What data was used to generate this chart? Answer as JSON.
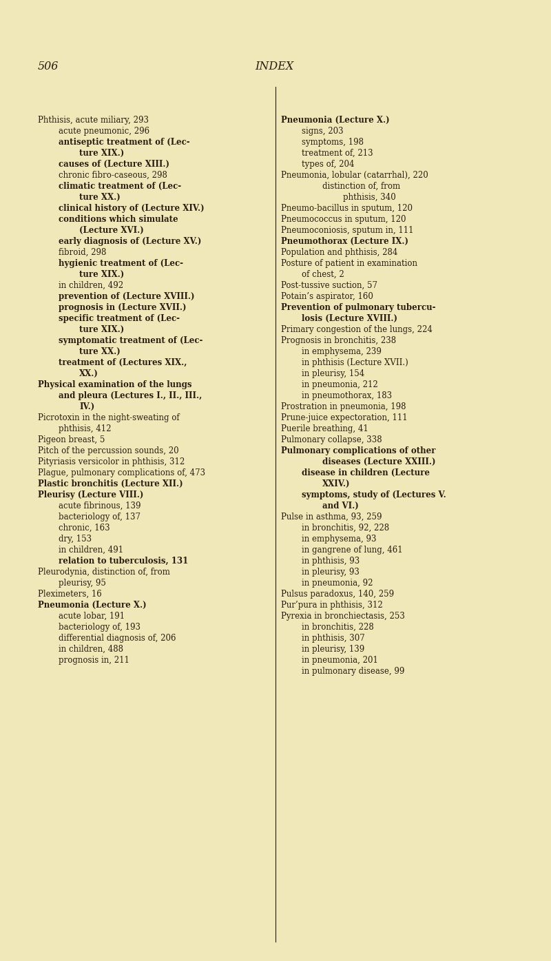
{
  "bg_color": "#f0e8b8",
  "page_number": "506",
  "page_title": "INDEX",
  "text_color": "#2a1f0e",
  "font_size": 8.5,
  "title_font_size": 11.5,
  "left_column": [
    {
      "text": "Phthisis, acute miliary, 293",
      "indent": 0,
      "bold": false
    },
    {
      "text": "acute pneumonic, 296",
      "indent": 1,
      "bold": false
    },
    {
      "text": "antiseptic treatment of (Lec-",
      "indent": 1,
      "bold": true
    },
    {
      "text": "ture XIX.)",
      "indent": 2,
      "bold": true
    },
    {
      "text": "causes of (Lecture XIII.)",
      "indent": 1,
      "bold": true
    },
    {
      "text": "chronic fibro-caseous, 298",
      "indent": 1,
      "bold": false
    },
    {
      "text": "climatic treatment of (Lec-",
      "indent": 1,
      "bold": true
    },
    {
      "text": "ture XX.)",
      "indent": 2,
      "bold": true
    },
    {
      "text": "clinical history of (Lecture XIV.)",
      "indent": 1,
      "bold": true
    },
    {
      "text": "conditions which simulate",
      "indent": 1,
      "bold": true
    },
    {
      "text": "(Lecture XVI.)",
      "indent": 2,
      "bold": true
    },
    {
      "text": "early diagnosis of (Lecture XV.)",
      "indent": 1,
      "bold": true
    },
    {
      "text": "fibroid, 298",
      "indent": 1,
      "bold": false
    },
    {
      "text": "hygienic treatment of (Lec-",
      "indent": 1,
      "bold": true
    },
    {
      "text": "ture XIX.)",
      "indent": 2,
      "bold": true
    },
    {
      "text": "in children, 492",
      "indent": 1,
      "bold": false
    },
    {
      "text": "prevention of (Lecture XVIII.)",
      "indent": 1,
      "bold": true
    },
    {
      "text": "prognosis in (Lecture XVII.)",
      "indent": 1,
      "bold": true
    },
    {
      "text": "specific treatment of (Lec-",
      "indent": 1,
      "bold": true
    },
    {
      "text": "ture XIX.)",
      "indent": 2,
      "bold": true
    },
    {
      "text": "symptomatic treatment of (Lec-",
      "indent": 1,
      "bold": true
    },
    {
      "text": "ture XX.)",
      "indent": 2,
      "bold": true
    },
    {
      "text": "treatment of (Lectures XIX.,",
      "indent": 1,
      "bold": true
    },
    {
      "text": "XX.)",
      "indent": 2,
      "bold": true
    },
    {
      "text": "Physical examination of the lungs",
      "indent": 0,
      "bold": true
    },
    {
      "text": "and pleura (Lectures I., II., III.,",
      "indent": 1,
      "bold": true
    },
    {
      "text": "IV.)",
      "indent": 2,
      "bold": true
    },
    {
      "text": "Picrotoxin in the night-sweating of",
      "indent": 0,
      "bold": false
    },
    {
      "text": "phthisis, 412",
      "indent": 1,
      "bold": false
    },
    {
      "text": "Pigeon breast, 5",
      "indent": 0,
      "bold": false
    },
    {
      "text": "Pitch of the percussion sounds, 20",
      "indent": 0,
      "bold": false
    },
    {
      "text": "Pityriasis versicolor in phthisis, 312",
      "indent": 0,
      "bold": false
    },
    {
      "text": "Plague, pulmonary complications of, 473",
      "indent": 0,
      "bold": false
    },
    {
      "text": "Plastic bronchitis (Lecture XII.)",
      "indent": 0,
      "bold": true
    },
    {
      "text": "Pleurisy (Lecture VIII.)",
      "indent": 0,
      "bold": true
    },
    {
      "text": "acute fibrinous, 139",
      "indent": 1,
      "bold": false
    },
    {
      "text": "bacteriology of, 137",
      "indent": 1,
      "bold": false
    },
    {
      "text": "chronic, 163",
      "indent": 1,
      "bold": false
    },
    {
      "text": "dry, 153",
      "indent": 1,
      "bold": false
    },
    {
      "text": "in children, 491",
      "indent": 1,
      "bold": false
    },
    {
      "text": "relation to tuberculosis, 131",
      "indent": 1,
      "bold": true
    },
    {
      "text": "Pleurodynia, distinction of, from",
      "indent": 0,
      "bold": false
    },
    {
      "text": "pleurisy, 95",
      "indent": 1,
      "bold": false
    },
    {
      "text": "Pleximeters, 16",
      "indent": 0,
      "bold": false
    },
    {
      "text": "Pneumonia (Lecture X.)",
      "indent": 0,
      "bold": true
    },
    {
      "text": "acute lobar, 191",
      "indent": 1,
      "bold": false
    },
    {
      "text": "bacteriology of, 193",
      "indent": 1,
      "bold": false
    },
    {
      "text": "differential diagnosis of, 206",
      "indent": 1,
      "bold": false
    },
    {
      "text": "in children, 488",
      "indent": 1,
      "bold": false
    },
    {
      "text": "prognosis in, 211",
      "indent": 1,
      "bold": false
    }
  ],
  "right_column": [
    {
      "text": "Pneumonia (Lecture X.)",
      "indent": 0,
      "bold": true
    },
    {
      "text": "signs, 203",
      "indent": 1,
      "bold": false
    },
    {
      "text": "symptoms, 198",
      "indent": 1,
      "bold": false
    },
    {
      "text": "treatment of, 213",
      "indent": 1,
      "bold": false
    },
    {
      "text": "types of, 204",
      "indent": 1,
      "bold": false
    },
    {
      "text": "Pneumonia, lobular (catarrhal), 220",
      "indent": 0,
      "bold": false
    },
    {
      "text": "distinction of, from",
      "indent": 2,
      "bold": false
    },
    {
      "text": "phthisis, 340",
      "indent": 3,
      "bold": false
    },
    {
      "text": "Pneumo-bacillus in sputum, 120",
      "indent": 0,
      "bold": false
    },
    {
      "text": "Pneumococcus in sputum, 120",
      "indent": 0,
      "bold": false
    },
    {
      "text": "Pneumoconiosis, sputum in, 111",
      "indent": 0,
      "bold": false
    },
    {
      "text": "Pneumothorax (Lecture IX.)",
      "indent": 0,
      "bold": true
    },
    {
      "text": "Population and phthisis, 284",
      "indent": 0,
      "bold": false
    },
    {
      "text": "Posture of patient in examination",
      "indent": 0,
      "bold": false
    },
    {
      "text": "of chest, 2",
      "indent": 1,
      "bold": false
    },
    {
      "text": "Post-tussive suction, 57",
      "indent": 0,
      "bold": false
    },
    {
      "text": "Potain’s aspirator, 160",
      "indent": 0,
      "bold": false
    },
    {
      "text": "Prevention of pulmonary tubercu-",
      "indent": 0,
      "bold": true
    },
    {
      "text": "losis (Lecture XVIII.)",
      "indent": 1,
      "bold": true
    },
    {
      "text": "Primary congestion of the lungs, 224",
      "indent": 0,
      "bold": false
    },
    {
      "text": "Prognosis in bronchitis, 238",
      "indent": 0,
      "bold": false
    },
    {
      "text": "in emphysema, 239",
      "indent": 1,
      "bold": false
    },
    {
      "text": "in phthisis (Lecture XVII.)",
      "indent": 1,
      "bold": false
    },
    {
      "text": "in pleurisy, 154",
      "indent": 1,
      "bold": false
    },
    {
      "text": "in pneumonia, 212",
      "indent": 1,
      "bold": false
    },
    {
      "text": "in pneumothorax, 183",
      "indent": 1,
      "bold": false
    },
    {
      "text": "Prostration in pneumonia, 198",
      "indent": 0,
      "bold": false
    },
    {
      "text": "Prune-juice expectoration, 111",
      "indent": 0,
      "bold": false
    },
    {
      "text": "Puerile breathing, 41",
      "indent": 0,
      "bold": false
    },
    {
      "text": "Pulmonary collapse, 338",
      "indent": 0,
      "bold": false
    },
    {
      "text": "Pulmonary complications of other",
      "indent": 0,
      "bold": true
    },
    {
      "text": "diseases (Lecture XXIII.)",
      "indent": 2,
      "bold": true
    },
    {
      "text": "disease in children (Lecture",
      "indent": 1,
      "bold": true
    },
    {
      "text": "XXIV.)",
      "indent": 2,
      "bold": true
    },
    {
      "text": "symptoms, study of (Lectures V.",
      "indent": 1,
      "bold": true
    },
    {
      "text": "and VI.)",
      "indent": 2,
      "bold": true
    },
    {
      "text": "Pulse in asthma, 93, 259",
      "indent": 0,
      "bold": false
    },
    {
      "text": "in bronchitis, 92, 228",
      "indent": 1,
      "bold": false
    },
    {
      "text": "in emphysema, 93",
      "indent": 1,
      "bold": false
    },
    {
      "text": "in gangrene of lung, 461",
      "indent": 1,
      "bold": false
    },
    {
      "text": "in phthisis, 93",
      "indent": 1,
      "bold": false
    },
    {
      "text": "in pleurisy, 93",
      "indent": 1,
      "bold": false
    },
    {
      "text": "in pneumonia, 92",
      "indent": 1,
      "bold": false
    },
    {
      "text": "Pulsus paradoxus, 140, 259",
      "indent": 0,
      "bold": false
    },
    {
      "text": "Pur’pura in phthisis, 312",
      "indent": 0,
      "bold": false
    },
    {
      "text": "Pyrexia in bronchiectasis, 253",
      "indent": 0,
      "bold": false
    },
    {
      "text": "in bronchitis, 228",
      "indent": 1,
      "bold": false
    },
    {
      "text": "in phthisis, 307",
      "indent": 1,
      "bold": false
    },
    {
      "text": "in pleurisy, 139",
      "indent": 1,
      "bold": false
    },
    {
      "text": "in pneumonia, 201",
      "indent": 1,
      "bold": false
    },
    {
      "text": "in pulmonary disease, 99",
      "indent": 1,
      "bold": false
    }
  ]
}
